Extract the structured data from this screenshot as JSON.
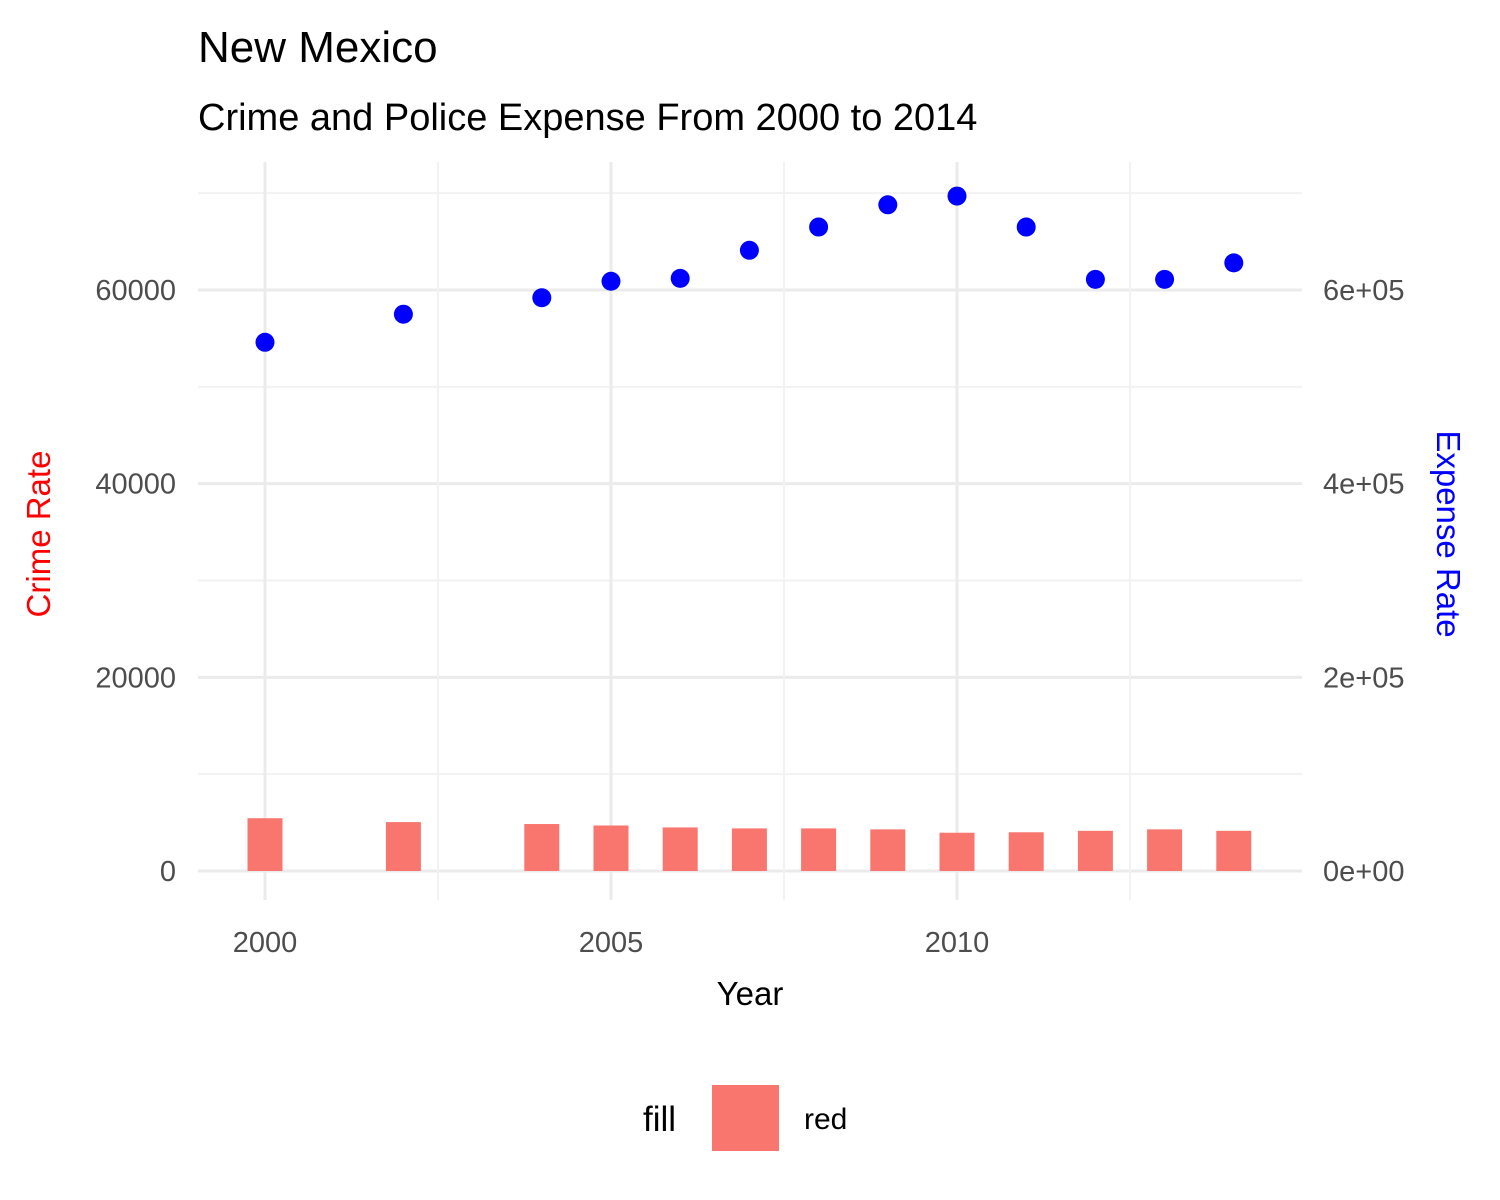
{
  "chart_data": {
    "type": "bar",
    "title": "New Mexico",
    "subtitle": "Crime and Police Expense From 2000 to 2014",
    "xlabel": "Year",
    "ylabel_left": "Crime Rate",
    "ylabel_right": "Expense Rate",
    "xlim": [
      1999,
      2015
    ],
    "ylim_left": [
      0,
      70000
    ],
    "ylim_right": [
      0,
      700000
    ],
    "x_ticks": [
      "2000",
      "2005",
      "2010"
    ],
    "y_left_ticks": [
      "0",
      "20000",
      "40000",
      "60000"
    ],
    "y_right_ticks": [
      "0e+00",
      "2e+05",
      "4e+05",
      "6e+05"
    ],
    "grid": true,
    "legend": {
      "position": "bottom",
      "title": "fill",
      "entries": [
        {
          "label": "red",
          "color": "#F8766D"
        }
      ]
    },
    "series": [
      {
        "name": "red",
        "kind": "bar",
        "axis": "left",
        "color": "#F8766D",
        "x": [
          2000,
          2002,
          2004,
          2005,
          2006,
          2007,
          2008,
          2009,
          2010,
          2011,
          2012,
          2013,
          2014
        ],
        "values": [
          5450,
          5050,
          4850,
          4700,
          4500,
          4400,
          4400,
          4300,
          3950,
          4000,
          4150,
          4300,
          4150
        ]
      },
      {
        "kind": "point",
        "axis": "right",
        "color": "#0000FF",
        "x": [
          2000,
          2002,
          2004,
          2005,
          2006,
          2007,
          2008,
          2009,
          2010,
          2011,
          2012,
          2013,
          2014
        ],
        "values": [
          546000,
          575000,
          592000,
          609000,
          612000,
          641000,
          665000,
          688000,
          697000,
          665000,
          611000,
          611000,
          628000
        ]
      }
    ]
  }
}
